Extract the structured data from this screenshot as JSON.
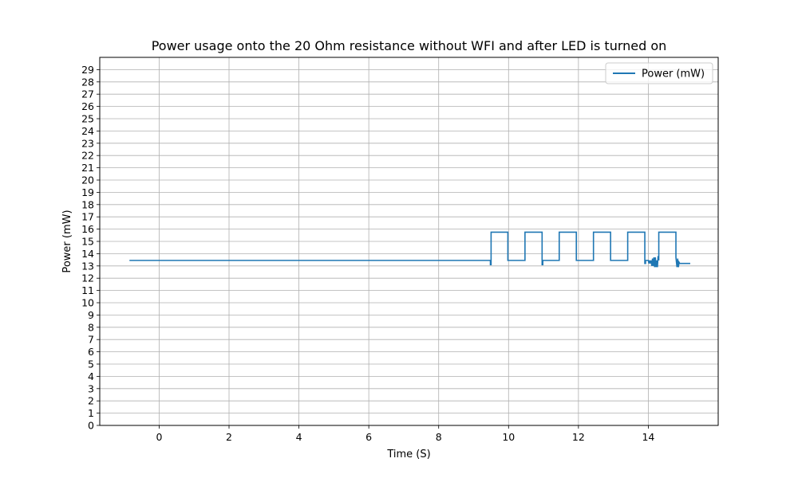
{
  "chart_data": {
    "type": "line",
    "title": "Power usage onto the 20 Ohm resistance without WFI and after LED is turned on",
    "xlabel": "Time (S)",
    "ylabel": "Power (mW)",
    "xlim": [
      -1.7,
      16.0
    ],
    "ylim": [
      0,
      30
    ],
    "xticks": [
      0,
      2,
      4,
      6,
      8,
      10,
      12,
      14
    ],
    "yticks": [
      0,
      1,
      2,
      3,
      4,
      5,
      6,
      7,
      8,
      9,
      10,
      11,
      12,
      13,
      14,
      15,
      16,
      17,
      18,
      19,
      20,
      21,
      22,
      23,
      24,
      25,
      26,
      27,
      28,
      29
    ],
    "grid": true,
    "legend_position": "top-right",
    "series": [
      {
        "name": "Power (mW)",
        "color": "#1f77b4",
        "x": [
          -0.85,
          9.48,
          9.48,
          9.5,
          9.5,
          9.98,
          9.98,
          10.47,
          10.47,
          10.96,
          10.96,
          10.98,
          10.98,
          11.45,
          11.45,
          11.94,
          11.94,
          12.43,
          12.43,
          12.92,
          12.92,
          13.41,
          13.41,
          13.9,
          13.9,
          13.92,
          13.92,
          14.0,
          14.02,
          14.04,
          14.06,
          14.08,
          14.1,
          14.12,
          14.14,
          14.16,
          14.18,
          14.2,
          14.22,
          14.24,
          14.26,
          14.28,
          14.3,
          14.3,
          14.79,
          14.79,
          14.82,
          14.84,
          14.86,
          14.88,
          14.9,
          15.2
        ],
        "y": [
          13.45,
          13.45,
          13.1,
          13.1,
          15.75,
          15.75,
          13.45,
          13.45,
          15.75,
          15.75,
          13.1,
          13.1,
          13.45,
          13.45,
          15.75,
          15.75,
          13.45,
          13.45,
          15.75,
          15.75,
          13.45,
          13.45,
          15.75,
          15.75,
          13.2,
          13.2,
          13.45,
          13.45,
          13.2,
          13.45,
          13.2,
          13.45,
          13.0,
          13.6,
          13.0,
          13.7,
          12.9,
          13.7,
          12.9,
          13.45,
          12.9,
          13.8,
          13.45,
          15.75,
          15.75,
          13.7,
          12.9,
          13.6,
          12.9,
          13.3,
          13.2,
          13.2
        ]
      }
    ]
  }
}
